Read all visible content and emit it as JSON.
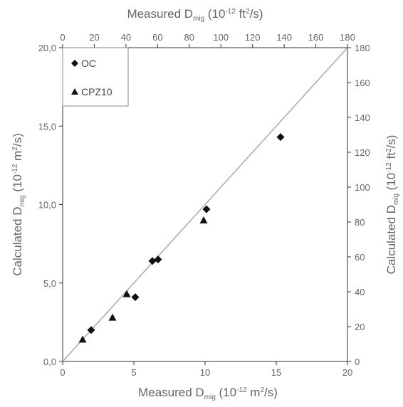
{
  "chart_data": {
    "type": "scatter",
    "axes": {
      "bottom": {
        "label_prefix": "Measured D",
        "label_sub": "mig",
        "label_unit_open": " (10",
        "label_exp": "-12",
        "label_unit_mid": " m",
        "label_unit_exp": "2",
        "label_unit_close": "/s)",
        "range": [
          0,
          20
        ],
        "ticks": [
          0,
          5,
          10,
          15,
          20
        ],
        "tick_labels": [
          "0",
          "5",
          "10",
          "15",
          "20"
        ]
      },
      "left": {
        "label_prefix": "Calculated D",
        "label_sub": "mig",
        "label_unit_open": " (10",
        "label_exp": "-12",
        "label_unit_mid": " m",
        "label_unit_exp": "2",
        "label_unit_close": "/s)",
        "range": [
          0,
          20
        ],
        "ticks": [
          0,
          5,
          10,
          15,
          20
        ],
        "tick_labels": [
          "0,0",
          "5,0",
          "10,0",
          "15,0",
          "20,0"
        ]
      },
      "top": {
        "label_prefix": "Measured D",
        "label_sub": "mig",
        "label_unit_open": " (10",
        "label_exp": "-12",
        "label_unit_mid": " ft",
        "label_unit_exp": "2",
        "label_unit_close": "/s)",
        "range": [
          0,
          180
        ],
        "ticks": [
          0,
          20,
          40,
          60,
          80,
          100,
          120,
          140,
          160,
          180
        ],
        "tick_labels": [
          "0",
          "20",
          "40",
          "60",
          "80",
          "100",
          "120",
          "140",
          "160",
          "180"
        ]
      },
      "right": {
        "label_prefix": "Calculated D",
        "label_sub": "mig",
        "label_unit_open": " (10",
        "label_exp": "-12",
        "label_unit_mid": " ft",
        "label_unit_exp": "2",
        "label_unit_close": "/s)",
        "range": [
          0,
          180
        ],
        "ticks": [
          0,
          20,
          40,
          60,
          80,
          100,
          120,
          140,
          160,
          180
        ],
        "tick_labels": [
          "0",
          "20",
          "40",
          "60",
          "80",
          "100",
          "120",
          "140",
          "160",
          "180"
        ]
      }
    },
    "reference_line": {
      "from": [
        0,
        0
      ],
      "to": [
        20,
        20
      ],
      "color": "#aaaaaa"
    },
    "legend_position": "top-left",
    "series": [
      {
        "name": "OC",
        "marker": "diamond",
        "color": "#111111",
        "points": [
          {
            "x": 2.0,
            "y": 2.0
          },
          {
            "x": 5.1,
            "y": 4.1
          },
          {
            "x": 6.3,
            "y": 6.4
          },
          {
            "x": 6.7,
            "y": 6.5
          },
          {
            "x": 10.1,
            "y": 9.7
          },
          {
            "x": 15.3,
            "y": 14.3
          }
        ]
      },
      {
        "name": "CPZ10",
        "marker": "triangle",
        "color": "#111111",
        "points": [
          {
            "x": 1.4,
            "y": 1.4
          },
          {
            "x": 3.5,
            "y": 2.8
          },
          {
            "x": 4.5,
            "y": 4.3
          },
          {
            "x": 9.9,
            "y": 9.0
          }
        ]
      }
    ]
  }
}
